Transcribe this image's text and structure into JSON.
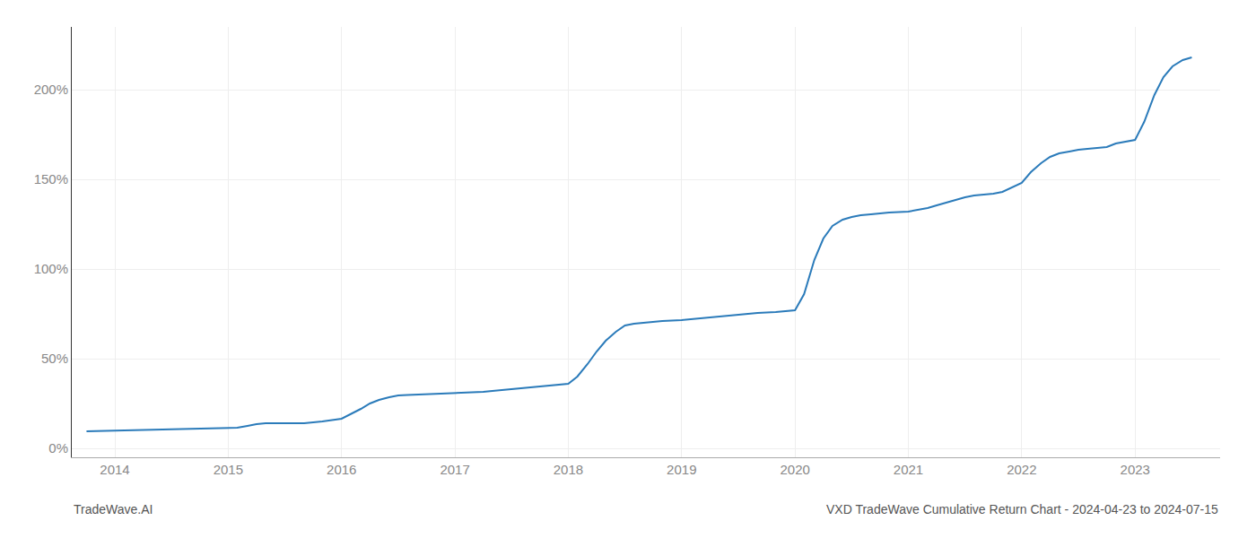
{
  "chart_data": {
    "type": "line",
    "title": "VXD TradeWave Cumulative Return Chart - 2024-04-23 to 2024-07-15",
    "annotations": [
      "TradeWave.AI"
    ],
    "color": "#2b7bba",
    "grid": true,
    "x": [
      2013.75,
      2014.0,
      2014.08,
      2014.17,
      2014.25,
      2014.33,
      2014.42,
      2014.5,
      2014.58,
      2014.67,
      2014.75,
      2014.83,
      2015.0,
      2015.08,
      2015.17,
      2015.25,
      2015.33,
      2015.42,
      2015.5,
      2015.58,
      2015.67,
      2015.75,
      2015.83,
      2016.0,
      2016.08,
      2016.17,
      2016.25,
      2016.33,
      2016.42,
      2016.5,
      2016.58,
      2016.67,
      2016.75,
      2016.83,
      2017.0,
      2017.08,
      2017.17,
      2017.25,
      2017.33,
      2017.42,
      2017.5,
      2017.58,
      2017.67,
      2017.75,
      2017.83,
      2018.0,
      2018.08,
      2018.17,
      2018.25,
      2018.33,
      2018.42,
      2018.5,
      2018.58,
      2018.67,
      2018.75,
      2018.83,
      2019.0,
      2019.08,
      2019.17,
      2019.25,
      2019.33,
      2019.42,
      2019.5,
      2019.58,
      2019.67,
      2019.75,
      2019.83,
      2020.0,
      2020.08,
      2020.17,
      2020.25,
      2020.33,
      2020.42,
      2020.5,
      2020.58,
      2020.67,
      2020.75,
      2020.83,
      2021.0,
      2021.08,
      2021.17,
      2021.25,
      2021.33,
      2021.42,
      2021.5,
      2021.58,
      2021.67,
      2021.75,
      2021.83,
      2022.0,
      2022.08,
      2022.17,
      2022.25,
      2022.33,
      2022.42,
      2022.5,
      2022.58,
      2022.67,
      2022.75,
      2022.83,
      2023.0,
      2023.08,
      2023.17,
      2023.25,
      2023.33,
      2023.42,
      2023.5
    ],
    "values": [
      9.5,
      10.0,
      10.1,
      10.2,
      10.3,
      10.4,
      10.5,
      10.6,
      10.7,
      10.8,
      10.9,
      11.0,
      11.2,
      11.5,
      12.5,
      13.5,
      14.0,
      14.0,
      13.8,
      13.9,
      14.0,
      14.5,
      15.0,
      16.5,
      19.0,
      22.0,
      25.0,
      27.0,
      28.5,
      29.5,
      29.8,
      30.0,
      30.2,
      30.5,
      30.8,
      31.0,
      31.3,
      31.5,
      32.0,
      32.5,
      33.0,
      33.5,
      34.0,
      34.5,
      35.0,
      36.0,
      40.0,
      47.0,
      54.0,
      60.0,
      65.0,
      68.5,
      69.5,
      70.0,
      70.5,
      71.0,
      71.5,
      72.0,
      72.5,
      73.0,
      73.5,
      74.0,
      74.5,
      75.0,
      75.5,
      75.8,
      76.0,
      77.0,
      86.0,
      105.0,
      117.0,
      124.0,
      127.5,
      129.0,
      130.0,
      130.5,
      131.0,
      131.5,
      132.0,
      133.0,
      134.0,
      135.5,
      137.0,
      138.5,
      140.0,
      141.0,
      141.5,
      142.0,
      143.0,
      148.0,
      154.0,
      159.0,
      162.5,
      164.5,
      165.5,
      166.5,
      167.0,
      167.5,
      168.0,
      170.0,
      172.0,
      182.0,
      197.0,
      207.0,
      213.0,
      216.5,
      218.0
    ],
    "xlim": [
      2013.62,
      2023.75
    ],
    "xticks": [
      2014,
      2015,
      2016,
      2017,
      2018,
      2019,
      2020,
      2021,
      2022,
      2023
    ],
    "ylim": [
      -5,
      235
    ],
    "yticks": [
      {
        "value": 0,
        "label": "0%"
      },
      {
        "value": 50,
        "label": "50%"
      },
      {
        "value": 100,
        "label": "100%"
      },
      {
        "value": 150,
        "label": "150%"
      },
      {
        "value": 200,
        "label": "200%"
      }
    ]
  }
}
